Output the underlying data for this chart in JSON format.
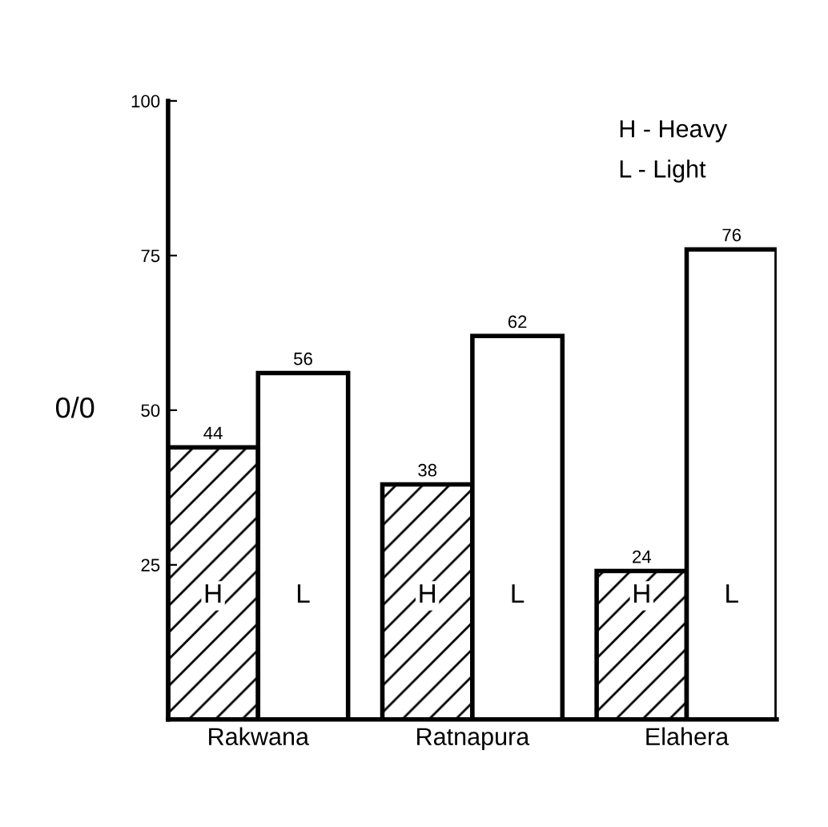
{
  "chart_data": {
    "type": "bar",
    "categories": [
      "Rakwana",
      "Ratnapura",
      "Elahera"
    ],
    "series": [
      {
        "name": "H",
        "color": "#000000",
        "values": [
          44,
          38,
          24
        ]
      },
      {
        "name": "L",
        "color": "#ffffff",
        "values": [
          56,
          62,
          76
        ]
      }
    ],
    "ylabel": "0/0",
    "ylim": [
      0,
      100
    ],
    "yticks": [
      25,
      50,
      75,
      100
    ],
    "data_labels": true,
    "grid": false,
    "legend": false,
    "annotations": [
      "H - Heavy",
      "L - Light"
    ]
  }
}
